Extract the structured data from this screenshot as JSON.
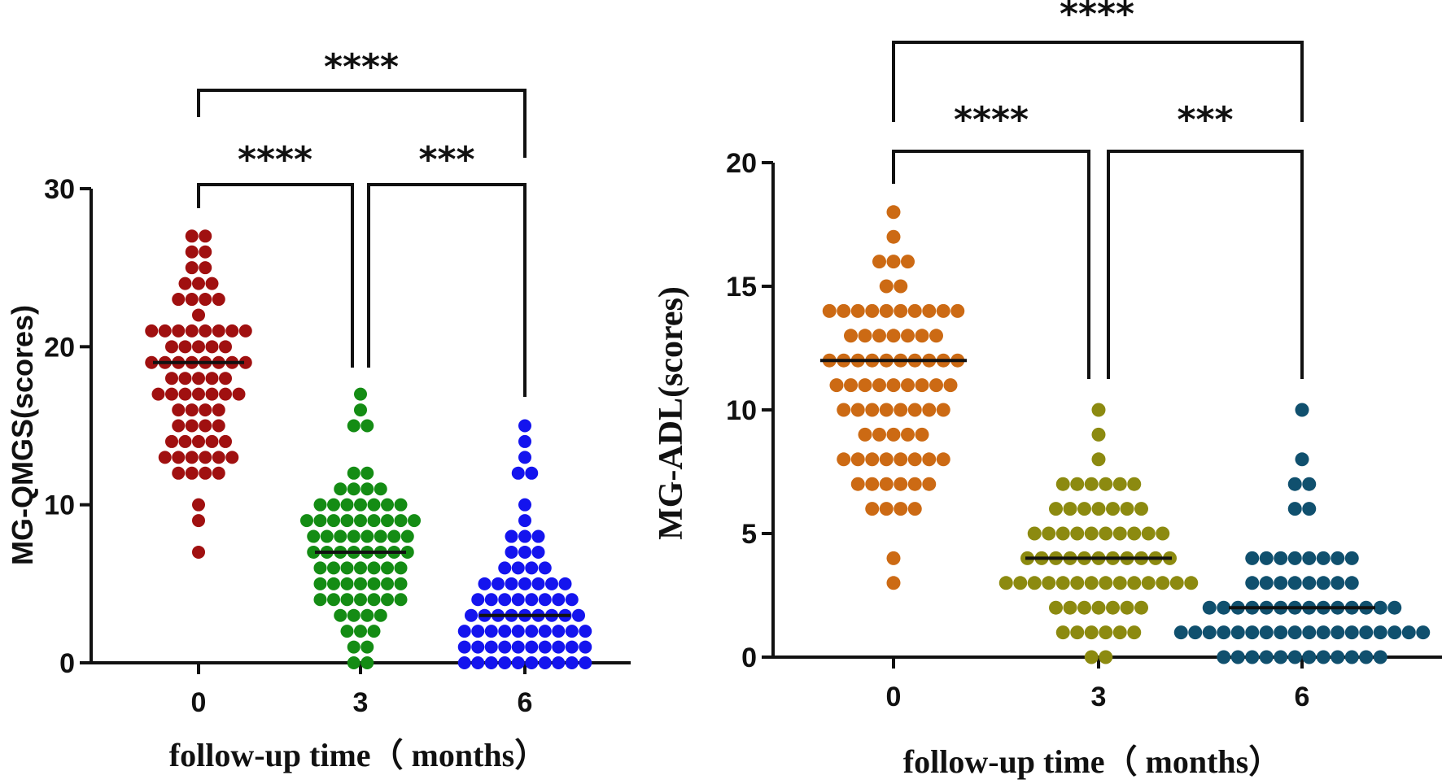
{
  "chart_data": [
    {
      "type": "scatter",
      "subtype": "dot-plot",
      "ylabel": "MG-QMGS(scores)",
      "xlabel": "follow-up time（ months）",
      "ylim": [
        0,
        30
      ],
      "yticks": [
        "0",
        "10",
        "20",
        "30"
      ],
      "categories": [
        "0",
        "3",
        "6"
      ],
      "series": [
        {
          "name": "0",
          "color": "#a01010",
          "median": 19,
          "values": [
            27,
            27,
            26,
            26,
            25,
            25,
            24,
            24,
            24,
            23,
            23,
            23,
            23,
            22,
            21,
            21,
            21,
            21,
            21,
            21,
            21,
            21,
            20,
            20,
            20,
            20,
            20,
            19,
            19,
            19,
            19,
            19,
            19,
            19,
            19,
            18,
            18,
            18,
            18,
            18,
            17,
            17,
            17,
            17,
            17,
            17,
            17,
            16,
            16,
            16,
            16,
            15,
            15,
            15,
            15,
            14,
            14,
            14,
            14,
            14,
            13,
            13,
            13,
            13,
            13,
            13,
            12,
            12,
            12,
            12,
            10,
            9,
            7
          ]
        },
        {
          "name": "3",
          "color": "#148c14",
          "median": 7,
          "values": [
            17,
            16,
            15,
            15,
            12,
            12,
            11,
            11,
            11,
            11,
            10,
            10,
            10,
            10,
            10,
            10,
            10,
            9,
            9,
            9,
            9,
            9,
            9,
            9,
            9,
            9,
            8,
            8,
            8,
            8,
            8,
            8,
            8,
            8,
            7,
            7,
            7,
            7,
            7,
            7,
            7,
            7,
            6,
            6,
            6,
            6,
            6,
            6,
            6,
            5,
            5,
            5,
            5,
            5,
            5,
            5,
            4,
            4,
            4,
            4,
            4,
            4,
            4,
            3,
            3,
            3,
            3,
            2,
            2,
            2,
            1,
            1,
            0,
            0
          ]
        },
        {
          "name": "6",
          "color": "#1414ee",
          "median": 3,
          "values": [
            15,
            14,
            13,
            12,
            12,
            10,
            9,
            8,
            8,
            8,
            7,
            7,
            7,
            6,
            6,
            6,
            6,
            5,
            5,
            5,
            5,
            5,
            5,
            5,
            4,
            4,
            4,
            4,
            4,
            4,
            4,
            4,
            3,
            3,
            3,
            3,
            3,
            3,
            3,
            3,
            3,
            2,
            2,
            2,
            2,
            2,
            2,
            2,
            2,
            2,
            2,
            1,
            1,
            1,
            1,
            1,
            1,
            1,
            1,
            1,
            1,
            0,
            0,
            0,
            0,
            0,
            0,
            0,
            0,
            0,
            0
          ]
        }
      ],
      "comparisons": [
        {
          "from": "0",
          "to": "3",
          "label": "****"
        },
        {
          "from": "3",
          "to": "6",
          "label": "***"
        },
        {
          "from": "0",
          "to": "6",
          "label": "****"
        }
      ]
    },
    {
      "type": "scatter",
      "subtype": "dot-plot",
      "ylabel": "MG-ADL(scores)",
      "xlabel": "follow-up time（ months）",
      "ylim": [
        0,
        20
      ],
      "yticks": [
        "0",
        "5",
        "10",
        "15",
        "20"
      ],
      "categories": [
        "0",
        "3",
        "6"
      ],
      "series": [
        {
          "name": "0",
          "color": "#cc6a14",
          "median": 12,
          "values": [
            18,
            17,
            16,
            16,
            16,
            15,
            15,
            14,
            14,
            14,
            14,
            14,
            14,
            14,
            14,
            14,
            14,
            13,
            13,
            13,
            13,
            13,
            13,
            13,
            12,
            12,
            12,
            12,
            12,
            12,
            12,
            12,
            12,
            12,
            11,
            11,
            11,
            11,
            11,
            11,
            11,
            11,
            11,
            10,
            10,
            10,
            10,
            10,
            10,
            10,
            10,
            9,
            9,
            9,
            9,
            9,
            8,
            8,
            8,
            8,
            8,
            8,
            8,
            8,
            7,
            7,
            7,
            7,
            7,
            7,
            6,
            6,
            6,
            6,
            4,
            3
          ]
        },
        {
          "name": "3",
          "color": "#8c8a10",
          "median": 4,
          "values": [
            10,
            9,
            8,
            7,
            7,
            7,
            7,
            7,
            7,
            6,
            6,
            6,
            6,
            6,
            6,
            6,
            5,
            5,
            5,
            5,
            5,
            5,
            5,
            5,
            5,
            5,
            4,
            4,
            4,
            4,
            4,
            4,
            4,
            4,
            4,
            4,
            4,
            3,
            3,
            3,
            3,
            3,
            3,
            3,
            3,
            3,
            3,
            3,
            3,
            3,
            3,
            2,
            2,
            2,
            2,
            2,
            2,
            2,
            1,
            1,
            1,
            1,
            1,
            1,
            0,
            0
          ]
        },
        {
          "name": "6",
          "color": "#10506e",
          "median": 2,
          "values": [
            10,
            8,
            7,
            7,
            6,
            6,
            4,
            4,
            4,
            4,
            4,
            4,
            4,
            4,
            3,
            3,
            3,
            3,
            3,
            3,
            3,
            3,
            2,
            2,
            2,
            2,
            2,
            2,
            2,
            2,
            2,
            2,
            2,
            2,
            2,
            2,
            1,
            1,
            1,
            1,
            1,
            1,
            1,
            1,
            1,
            1,
            1,
            1,
            1,
            1,
            1,
            1,
            1,
            1,
            0,
            0,
            0,
            0,
            0,
            0,
            0,
            0,
            0,
            0,
            0,
            0
          ]
        }
      ],
      "comparisons": [
        {
          "from": "0",
          "to": "3",
          "label": "****"
        },
        {
          "from": "3",
          "to": "6",
          "label": "***"
        },
        {
          "from": "0",
          "to": "6",
          "label": "****"
        }
      ]
    }
  ]
}
